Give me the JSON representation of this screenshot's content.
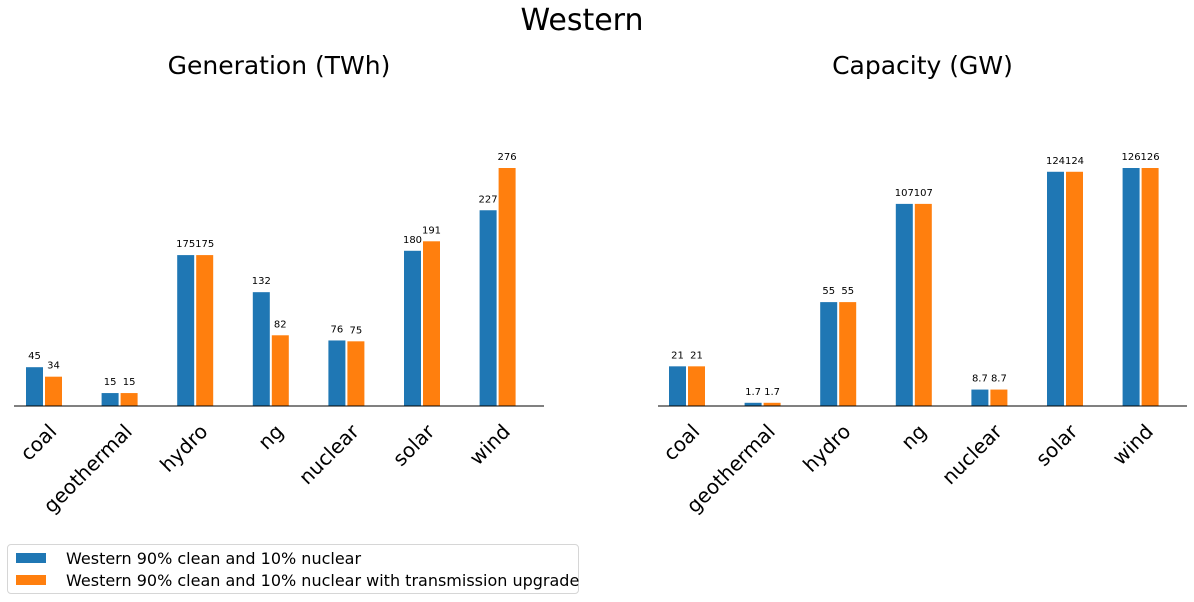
{
  "figure": {
    "title": "Western"
  },
  "colors": {
    "series_a": "#1f77b4",
    "series_b": "#ff7f0e"
  },
  "legend": {
    "entries": [
      {
        "label": "Western 90% clean and 10% nuclear",
        "color": "#1f77b4"
      },
      {
        "label": "Western 90% clean and 10% nuclear with transmission upgrade",
        "color": "#ff7f0e"
      }
    ]
  },
  "chart_data": [
    {
      "type": "bar",
      "title": "Generation (TWh)",
      "categories": [
        "coal",
        "geothermal",
        "hydro",
        "ng",
        "nuclear",
        "solar",
        "wind"
      ],
      "series": [
        {
          "name": "Western 90% clean and 10% nuclear",
          "values": [
            45,
            15,
            175,
            132,
            76,
            180,
            227
          ],
          "labels": [
            "45",
            "15",
            "175",
            "132",
            "76",
            "180",
            "227"
          ]
        },
        {
          "name": "Western 90% clean and 10% nuclear with transmission upgrade",
          "values": [
            34,
            15,
            175,
            82,
            75,
            191,
            276
          ],
          "labels": [
            "34",
            "15",
            "175",
            "82",
            "75",
            "191",
            "276"
          ]
        }
      ],
      "ylim": [
        0,
        320
      ],
      "grid": false,
      "legend_position": "bottom-left"
    },
    {
      "type": "bar",
      "title": "Capacity (GW)",
      "categories": [
        "coal",
        "geothermal",
        "hydro",
        "ng",
        "nuclear",
        "solar",
        "wind"
      ],
      "series": [
        {
          "name": "Western 90% clean and 10% nuclear",
          "values": [
            21,
            1.7,
            55,
            107,
            8.7,
            124,
            126
          ],
          "labels": [
            "21",
            "1.7",
            "55",
            "107",
            "8.7",
            "124",
            "126"
          ]
        },
        {
          "name": "Western 90% clean and 10% nuclear with transmission upgrade",
          "values": [
            21,
            1.7,
            55,
            107,
            8.7,
            124,
            126
          ],
          "labels": [
            "21",
            "1.7",
            "55",
            "107",
            "8.7",
            "124",
            "126"
          ]
        }
      ],
      "ylim": [
        0,
        150
      ],
      "grid": false,
      "legend_position": "bottom-left"
    }
  ]
}
